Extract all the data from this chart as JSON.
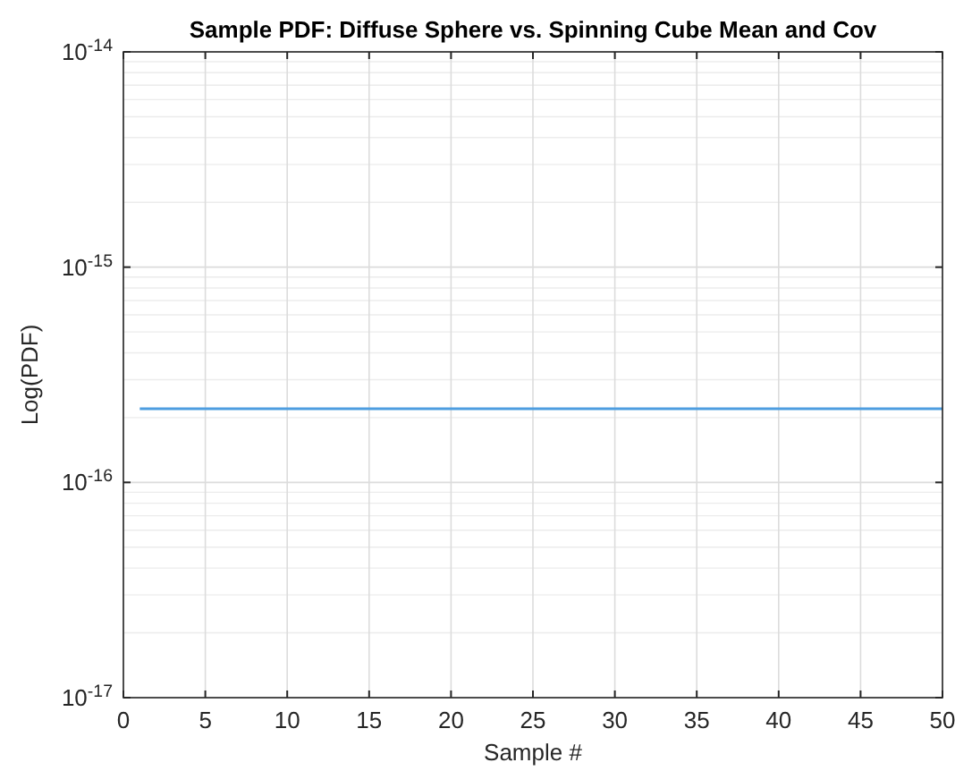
{
  "chart_data": {
    "type": "line",
    "title": "Sample PDF: Diffuse Sphere vs. Spinning Cube Mean and Cov",
    "xlabel": "Sample #",
    "ylabel": "Log(PDF)",
    "log": "y",
    "grid": true,
    "xlim": [
      0,
      50
    ],
    "xticks": [
      0,
      5,
      10,
      15,
      20,
      25,
      30,
      35,
      40,
      45,
      50
    ],
    "ylim": [
      1e-17,
      1e-14
    ],
    "yticks": [
      {
        "value": 1e-17,
        "label": "10$^{-17}$"
      },
      {
        "value": 1e-16,
        "label": "10$^{-16}$"
      },
      {
        "value": 1e-15,
        "label": "10$^{-15}$"
      },
      {
        "value": 1e-14,
        "label": "10$^{-14}$"
      }
    ],
    "series": [
      {
        "color": "#4d9de0",
        "x": [
          1,
          50
        ],
        "values": [
          2.2e-16,
          2.2e-16
        ]
      }
    ]
  }
}
